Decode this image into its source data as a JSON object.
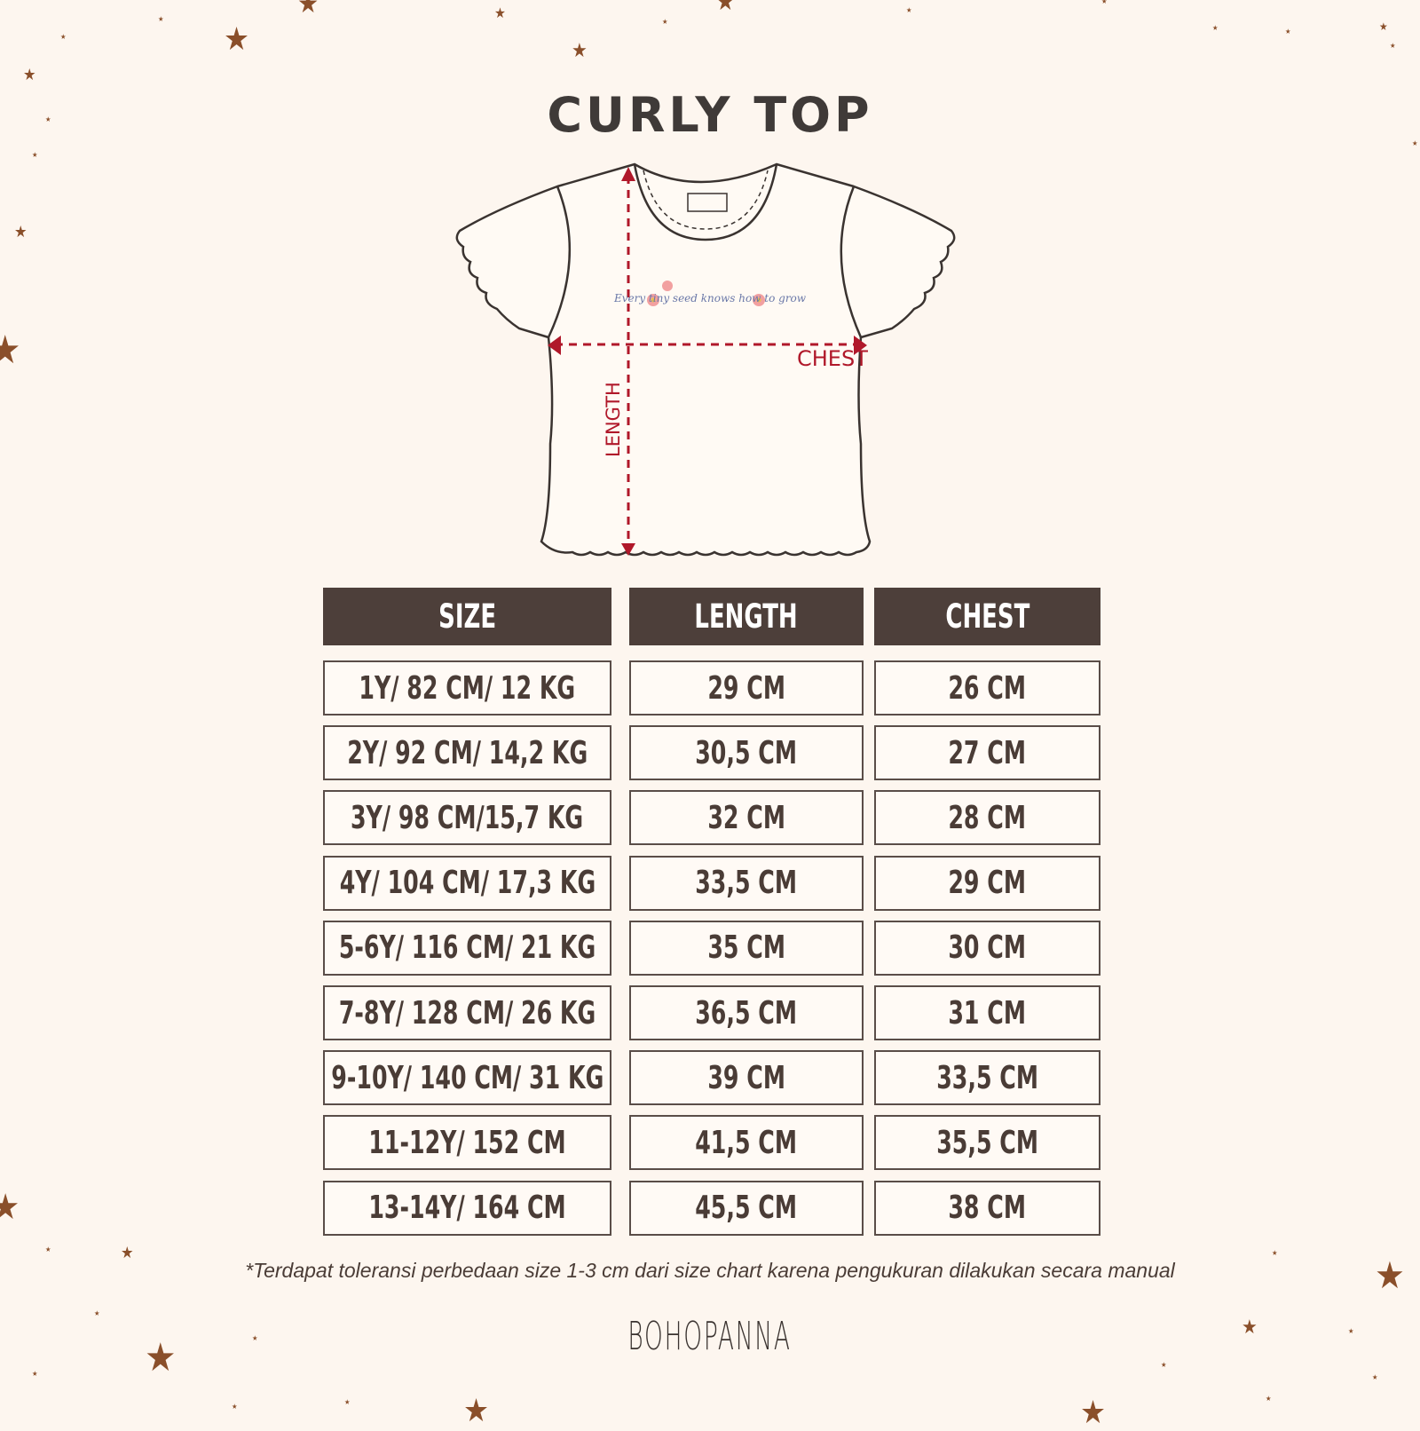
{
  "title": "CURLY TOP",
  "diagram": {
    "print_text": "Every tiny seed knows how to grow",
    "length_label": "LENGTH",
    "chest_label": "CHEST",
    "accent_color": "#b0182a"
  },
  "table": {
    "headers": [
      "SIZE",
      "LENGTH",
      "CHEST"
    ],
    "rows": [
      [
        "1Y/ 82 CM/ 12 KG",
        "29 CM",
        "26 CM"
      ],
      [
        "2Y/ 92 CM/ 14,2 KG",
        "30,5 CM",
        "27 CM"
      ],
      [
        "3Y/ 98 CM/15,7 KG",
        "32 CM",
        "28 CM"
      ],
      [
        "4Y/ 104 CM/ 17,3 KG",
        "33,5 CM",
        "29 CM"
      ],
      [
        "5-6Y/ 116 CM/ 21 KG",
        "35 CM",
        "30 CM"
      ],
      [
        "7-8Y/ 128 CM/ 26 KG",
        "36,5 CM",
        "31 CM"
      ],
      [
        "9-10Y/ 140 CM/ 31 KG",
        "39 CM",
        "33,5 CM"
      ],
      [
        "11-12Y/ 152 CM",
        "41,5 CM",
        "35,5 CM"
      ],
      [
        "13-14Y/ 164 CM",
        "45,5 CM",
        "38 CM"
      ]
    ]
  },
  "footnote": "*Terdapat toleransi perbedaan size 1-3 cm dari size chart karena pengukuran dilakukan secara manual",
  "brand": "BOHOPANNA",
  "colors": {
    "background": "#fdf6ef",
    "header": "#4d3f3a",
    "star": "#8a4f2a"
  }
}
